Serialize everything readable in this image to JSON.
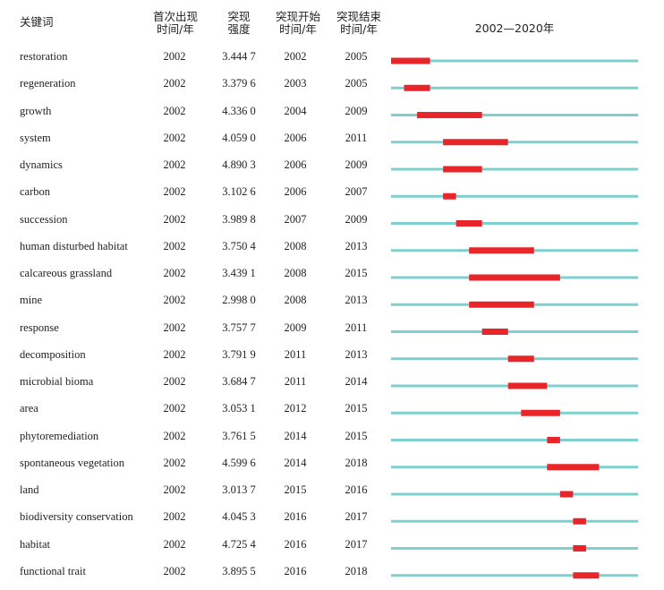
{
  "headers": {
    "keyword": "关键词",
    "first_year": [
      "首次出现",
      "时间/年"
    ],
    "strength": [
      "突现",
      "强度"
    ],
    "burst_begin": [
      "突现开始",
      "时间/年"
    ],
    "burst_end": [
      "突现结束",
      "时间/年"
    ],
    "range": "2002—2020年"
  },
  "colors": {
    "baseline": "#7ecfcf",
    "burst": "#e8262a"
  },
  "chart_data": {
    "type": "table",
    "timeline_range": [
      2002,
      2020
    ],
    "rows": [
      {
        "keyword": "restoration",
        "first_year": "2002",
        "strength": "3.444 7",
        "begin": "2002",
        "end": "2005"
      },
      {
        "keyword": "regeneration",
        "first_year": "2002",
        "strength": "3.379 6",
        "begin": "2003",
        "end": "2005"
      },
      {
        "keyword": "growth",
        "first_year": "2002",
        "strength": "4.336 0",
        "begin": "2004",
        "end": "2009"
      },
      {
        "keyword": "system",
        "first_year": "2002",
        "strength": "4.059 0",
        "begin": "2006",
        "end": "2011"
      },
      {
        "keyword": "dynamics",
        "first_year": "2002",
        "strength": "4.890 3",
        "begin": "2006",
        "end": "2009"
      },
      {
        "keyword": "carbon",
        "first_year": "2002",
        "strength": "3.102 6",
        "begin": "2006",
        "end": "2007"
      },
      {
        "keyword": "succession",
        "first_year": "2002",
        "strength": "3.989 8",
        "begin": "2007",
        "end": "2009"
      },
      {
        "keyword": "human disturbed habitat",
        "first_year": "2002",
        "strength": "3.750 4",
        "begin": "2008",
        "end": "2013"
      },
      {
        "keyword": "calcareous grassland",
        "first_year": "2002",
        "strength": "3.439 1",
        "begin": "2008",
        "end": "2015"
      },
      {
        "keyword": "mine",
        "first_year": "2002",
        "strength": "2.998 0",
        "begin": "2008",
        "end": "2013"
      },
      {
        "keyword": "response",
        "first_year": "2002",
        "strength": "3.757 7",
        "begin": "2009",
        "end": "2011"
      },
      {
        "keyword": "decomposition",
        "first_year": "2002",
        "strength": "3.791 9",
        "begin": "2011",
        "end": "2013"
      },
      {
        "keyword": "microbial bioma",
        "first_year": "2002",
        "strength": "3.684 7",
        "begin": "2011",
        "end": "2014"
      },
      {
        "keyword": "area",
        "first_year": "2002",
        "strength": "3.053 1",
        "begin": "2012",
        "end": "2015"
      },
      {
        "keyword": "phytoremediation",
        "first_year": "2002",
        "strength": "3.761 5",
        "begin": "2014",
        "end": "2015"
      },
      {
        "keyword": "spontaneous vegetation",
        "first_year": "2002",
        "strength": "4.599 6",
        "begin": "2014",
        "end": "2018"
      },
      {
        "keyword": "land",
        "first_year": "2002",
        "strength": "3.013 7",
        "begin": "2015",
        "end": "2016"
      },
      {
        "keyword": "biodiversity conservation",
        "first_year": "2002",
        "strength": "4.045 3",
        "begin": "2016",
        "end": "2017"
      },
      {
        "keyword": "habitat",
        "first_year": "2002",
        "strength": "4.725 4",
        "begin": "2016",
        "end": "2017"
      },
      {
        "keyword": "functional trait",
        "first_year": "2002",
        "strength": "3.895 5",
        "begin": "2016",
        "end": "2018"
      }
    ]
  }
}
